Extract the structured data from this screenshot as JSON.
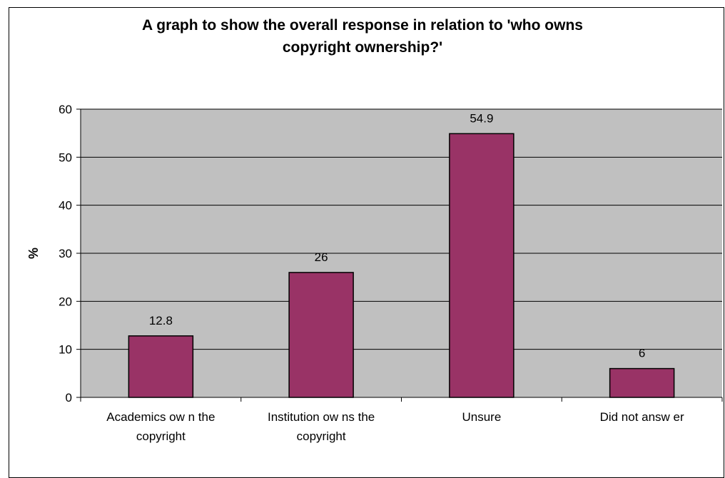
{
  "chart_data": {
    "type": "bar",
    "title": "A graph to show the overall response in relation to 'who owns\ncopyright ownership?'",
    "ylabel": "%",
    "xlabel": "",
    "categories": [
      [
        "Academics ow n the",
        "copyright"
      ],
      [
        "Institution ow ns the",
        "copyright"
      ],
      [
        "Unsure"
      ],
      [
        "Did not answ er"
      ]
    ],
    "values": [
      12.8,
      26,
      54.9,
      6
    ],
    "data_labels": [
      "12.8",
      "26",
      "54.9",
      "6"
    ],
    "ylim": [
      0,
      60
    ],
    "yticks": [
      0,
      10,
      20,
      30,
      40,
      50,
      60
    ],
    "grid": true,
    "legend": "none",
    "colors": {
      "bar": "#993366",
      "plot_background": "#c0c0c0",
      "gridline": "#000000"
    }
  }
}
